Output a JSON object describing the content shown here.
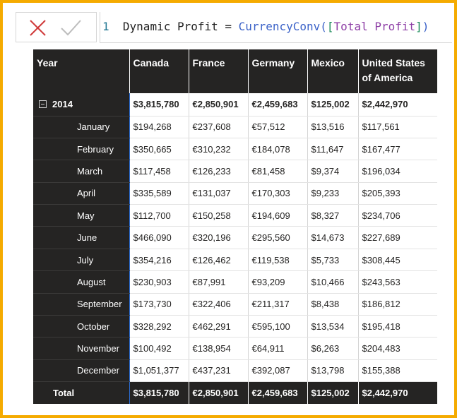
{
  "formula_bar": {
    "line_number": "1",
    "measure": "Dynamic Profit =",
    "function": "CurrencyConv",
    "open_paren": "(",
    "open_bracket": "[",
    "argument": "Total Profit",
    "close_bracket": "]",
    "close_paren": ")"
  },
  "table": {
    "headers": [
      "Year",
      "Canada",
      "France",
      "Germany",
      "Mexico",
      "United States of America"
    ],
    "year": "2014",
    "year_totals": [
      "$3,815,780",
      "€2,850,901",
      "€2,459,683",
      "$125,002",
      "$2,442,970"
    ],
    "rows": [
      {
        "label": "January",
        "cells": [
          "$194,268",
          "€237,608",
          "€57,512",
          "$13,516",
          "$117,561"
        ]
      },
      {
        "label": "February",
        "cells": [
          "$350,665",
          "€310,232",
          "€184,078",
          "$11,647",
          "$167,477"
        ]
      },
      {
        "label": "March",
        "cells": [
          "$117,458",
          "€126,233",
          "€81,458",
          "$9,374",
          "$196,034"
        ]
      },
      {
        "label": "April",
        "cells": [
          "$335,589",
          "€131,037",
          "€170,303",
          "$9,233",
          "$205,393"
        ]
      },
      {
        "label": "May",
        "cells": [
          "$112,700",
          "€150,258",
          "€194,609",
          "$8,327",
          "$234,706"
        ]
      },
      {
        "label": "June",
        "cells": [
          "$466,090",
          "€320,196",
          "€295,560",
          "$14,673",
          "$227,689"
        ]
      },
      {
        "label": "July",
        "cells": [
          "$354,216",
          "€126,462",
          "€119,538",
          "$5,733",
          "$308,445"
        ]
      },
      {
        "label": "August",
        "cells": [
          "$230,903",
          "€87,991",
          "€93,209",
          "$10,466",
          "$243,563"
        ]
      },
      {
        "label": "September",
        "cells": [
          "$173,730",
          "€322,406",
          "€211,317",
          "$8,438",
          "$186,812"
        ]
      },
      {
        "label": "October",
        "cells": [
          "$328,292",
          "€462,291",
          "€595,100",
          "$13,534",
          "$195,418"
        ]
      },
      {
        "label": "November",
        "cells": [
          "$100,492",
          "€138,954",
          "€64,911",
          "$6,263",
          "$204,483"
        ]
      },
      {
        "label": "December",
        "cells": [
          "$1,051,377",
          "€437,231",
          "€392,087",
          "$13,798",
          "$155,388"
        ]
      }
    ],
    "total_label": "Total",
    "totals": [
      "$3,815,780",
      "€2,850,901",
      "€2,459,683",
      "$125,002",
      "$2,442,970"
    ]
  }
}
